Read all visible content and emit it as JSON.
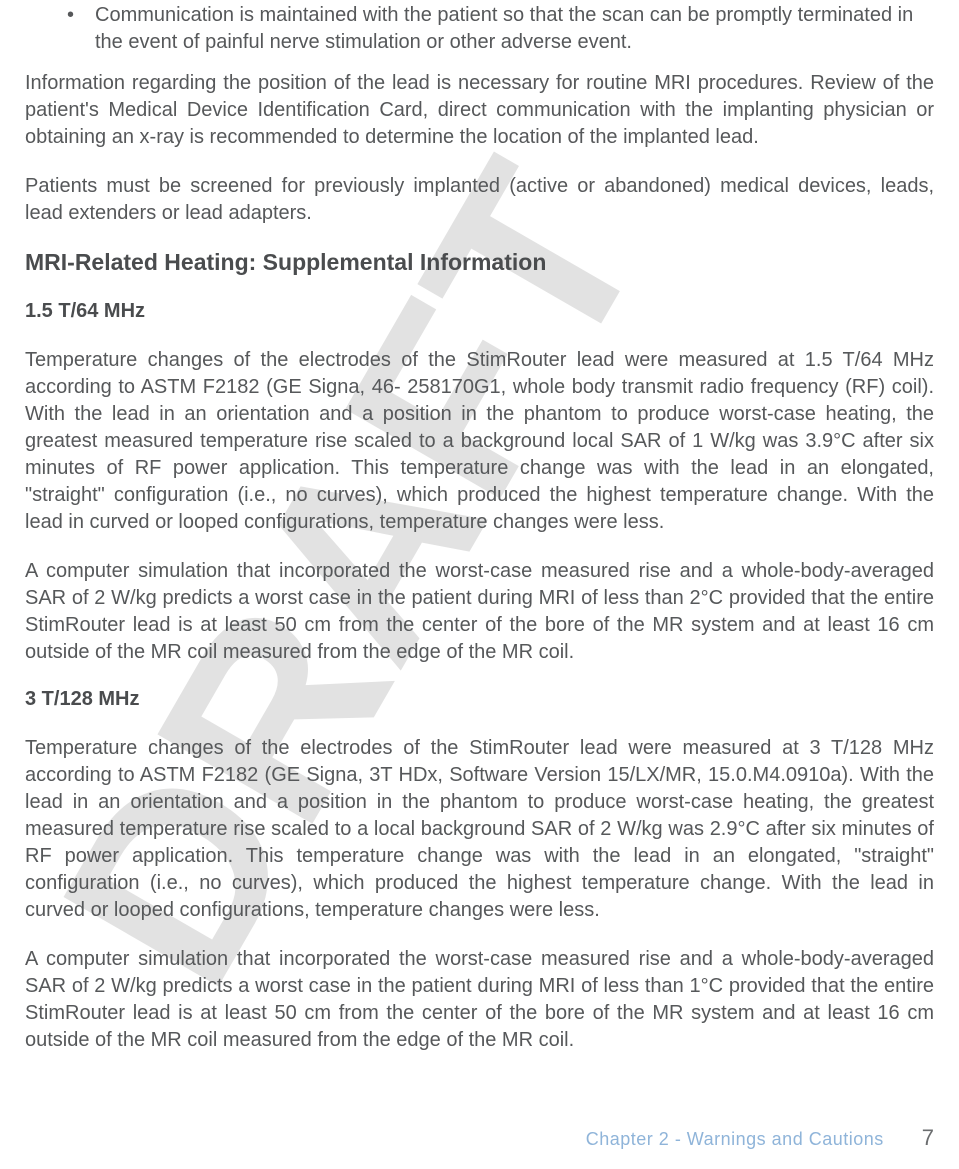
{
  "watermark": {
    "text": "DRAFT",
    "fill": "#e2e2e2",
    "opacity": 1.0
  },
  "bullet1": "Communication is maintained with the patient so that the scan can be promptly terminated in the event of painful nerve stimulation or other adverse event.",
  "para1": "Information regarding the position of the lead is necessary for routine MRI procedures. Review of the patient's Medical Device Identification Card, direct communication with the implanting physician or obtaining an x-ray is recommended to determine the location of the implanted lead.",
  "para2": "Patients must be screened for previously implanted (active or abandoned) medical devices, leads, lead extenders or lead adapters.",
  "heading_main": "MRI-Related Heating: Supplemental Information",
  "heading_sub1": "1.5 T/64 MHz",
  "para3": "Temperature changes of the electrodes of the StimRouter lead were measured at 1.5 T/64 MHz according to ASTM F2182 (GE Signa, 46- 258170G1, whole body transmit radio frequency (RF) coil). With the lead in an orientation and a position in the phantom to produce worst-case heating, the greatest measured temperature rise scaled to a background local SAR of 1 W/kg was 3.9°C after six minutes of RF power application. This temperature change was with the lead in an elongated, \"straight\" configuration (i.e., no curves), which produced the highest temperature change. With the lead in curved or looped configurations, temperature changes were less.",
  "para4": "A computer simulation that incorporated the worst-case measured rise and a whole-body-averaged SAR of 2 W/kg predicts a worst case in the patient during MRI of less than 2°C provided that the entire StimRouter lead is at least 50 cm from the center of the bore of the MR system and at least 16 cm outside of the MR coil measured from the edge of the MR coil.",
  "heading_sub2": "3 T/128 MHz",
  "para5": "Temperature changes of the electrodes of the StimRouter lead were measured at 3 T/128 MHz according to ASTM F2182 (GE Signa, 3T HDx, Software Version 15/LX/MR, 15.0.M4.0910a). With the lead in an orientation and a position in the phantom to produce worst-case heating, the greatest measured temperature rise scaled to a local background SAR of 2 W/kg was 2.9°C after six minutes of RF power application. This temperature change was with the lead in an elongated, \"straight\" configuration (i.e., no curves), which produced the highest temperature change. With the lead in curved or looped configurations, temperature changes were less.",
  "para6": "A computer simulation that incorporated the worst-case measured rise and a whole-body-averaged SAR of 2 W/kg predicts a worst case in the patient during MRI of less than 1°C provided that the entire StimRouter lead is at least 50 cm from the center of the bore of the MR system and at least 16 cm outside of the MR coil measured from the edge of the MR coil.",
  "footer": {
    "chapter": "Chapter 2 - Warnings and Cautions",
    "page": "7"
  }
}
